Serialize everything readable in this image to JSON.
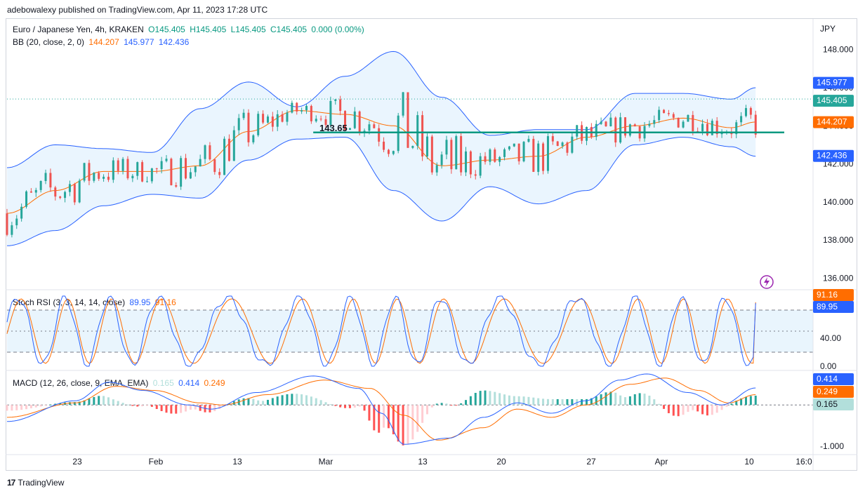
{
  "header": "adebowalexy published on TradingView.com, Apr 11, 2023 17:28 UTC",
  "price_legend": {
    "title": "Euro / Japanese Yen, 4h, KRAKEN",
    "o": "O145.405",
    "h": "H145.405",
    "l": "L145.405",
    "c": "C145.405",
    "chg": "0.000 (0.00%)"
  },
  "bb_legend": {
    "label": "BB (20, close, 2, 0)",
    "basis": "144.207",
    "upper": "145.977",
    "lower": "142.436"
  },
  "stoch_legend": {
    "label": "Stoch RSI (3, 3, 14, 14, close)",
    "k": "89.95",
    "d": "91.16"
  },
  "macd_legend": {
    "label": "MACD (12, 26, close, 9, EMA, EMA)",
    "hist": "0.165",
    "macd": "0.414",
    "signal": "0.249"
  },
  "currency": "JPY",
  "annotation": "143.65",
  "price_badges": {
    "upper": "145.977",
    "close": "145.405",
    "basis": "144.207",
    "lower": "142.436"
  },
  "stoch_badges": {
    "d": "91.16",
    "k": "89.95"
  },
  "macd_badges": {
    "macd": "0.414",
    "signal": "0.249",
    "hist": "0.165"
  },
  "footer": "TradingView",
  "colors": {
    "up": "#26a69a",
    "down": "#ef5350",
    "bb": "#2962ff",
    "basis": "#ff6d00",
    "fill": "#e3f2fd",
    "hline": "#089981"
  },
  "chart_data": [
    {
      "type": "candlestick",
      "title": "Euro / Japanese Yen, 4h, KRAKEN",
      "ylim": [
        135.5,
        149.5
      ],
      "yticks": [
        "148.000",
        "146.000",
        "144.000",
        "142.000",
        "140.000",
        "138.000",
        "136.000"
      ],
      "xticks": [
        "23",
        "Feb",
        "13",
        "Mar",
        "13",
        "20",
        "27",
        "Apr",
        "10",
        "16:0"
      ],
      "horizontal_line": 143.65,
      "anchors_upper": [
        [
          0,
          141.8
        ],
        [
          20,
          143.0
        ],
        [
          40,
          142.8
        ],
        [
          60,
          142.6
        ],
        [
          80,
          144.9
        ],
        [
          100,
          146.3
        ],
        [
          120,
          145.0
        ],
        [
          140,
          146.6
        ],
        [
          160,
          147.9
        ],
        [
          180,
          145.5
        ],
        [
          200,
          143.5
        ],
        [
          220,
          143.8
        ],
        [
          240,
          143.8
        ],
        [
          260,
          145.7
        ],
        [
          280,
          145.7
        ],
        [
          300,
          145.4
        ],
        [
          310,
          146.0
        ]
      ],
      "anchors_basis": [
        [
          0,
          139.4
        ],
        [
          20,
          140.6
        ],
        [
          40,
          141.6
        ],
        [
          60,
          141.6
        ],
        [
          80,
          141.9
        ],
        [
          100,
          143.7
        ],
        [
          120,
          144.8
        ],
        [
          140,
          144.6
        ],
        [
          160,
          144.0
        ],
        [
          180,
          141.9
        ],
        [
          200,
          142.2
        ],
        [
          220,
          142.4
        ],
        [
          240,
          143.4
        ],
        [
          260,
          144.0
        ],
        [
          280,
          144.4
        ],
        [
          300,
          143.9
        ],
        [
          310,
          144.2
        ]
      ],
      "anchors_lower": [
        [
          0,
          137.7
        ],
        [
          20,
          138.5
        ],
        [
          40,
          139.8
        ],
        [
          60,
          140.4
        ],
        [
          80,
          140.2
        ],
        [
          100,
          142.2
        ],
        [
          120,
          143.3
        ],
        [
          140,
          143.4
        ],
        [
          160,
          140.6
        ],
        [
          180,
          139.0
        ],
        [
          200,
          140.8
        ],
        [
          220,
          139.9
        ],
        [
          240,
          140.6
        ],
        [
          260,
          143.0
        ],
        [
          280,
          143.4
        ],
        [
          300,
          142.9
        ],
        [
          310,
          142.4
        ]
      ],
      "last_close": 145.405
    },
    {
      "type": "line",
      "title": "Stoch RSI (3, 3, 14, 14, close)",
      "ylim": [
        -3,
        107
      ],
      "yticks": [
        "0.00",
        "40.00",
        "80.00"
      ],
      "bands": [
        20,
        50,
        80
      ],
      "series": [
        {
          "name": "K",
          "color": "#2962ff"
        },
        {
          "name": "D",
          "color": "#ff6d00"
        }
      ],
      "k_last": 89.95,
      "d_last": 91.16
    },
    {
      "type": "line+bar",
      "title": "MACD (12, 26, close, 9, EMA, EMA)",
      "ylim": [
        -1.2,
        0.8
      ],
      "yticks": [
        "-1.000",
        "0.000"
      ],
      "anchors_macd": [
        [
          0,
          -0.4
        ],
        [
          30,
          0.1
        ],
        [
          45,
          0.55
        ],
        [
          60,
          0.35
        ],
        [
          80,
          0.0
        ],
        [
          90,
          -0.1
        ],
        [
          110,
          0.3
        ],
        [
          135,
          0.7
        ],
        [
          155,
          0.4
        ],
        [
          165,
          -0.2
        ],
        [
          175,
          -0.95
        ],
        [
          195,
          -0.8
        ],
        [
          210,
          -0.3
        ],
        [
          225,
          0.05
        ],
        [
          240,
          -0.2
        ],
        [
          255,
          0.1
        ],
        [
          270,
          0.6
        ],
        [
          282,
          0.75
        ],
        [
          300,
          0.3
        ],
        [
          315,
          0.0
        ],
        [
          330,
          0.41
        ]
      ],
      "anchors_signal": [
        [
          0,
          -0.3
        ],
        [
          30,
          0.05
        ],
        [
          48,
          0.45
        ],
        [
          65,
          0.35
        ],
        [
          85,
          0.05
        ],
        [
          95,
          0.0
        ],
        [
          115,
          0.25
        ],
        [
          140,
          0.6
        ],
        [
          160,
          0.4
        ],
        [
          175,
          -0.25
        ],
        [
          190,
          -0.85
        ],
        [
          210,
          -0.55
        ],
        [
          225,
          -0.1
        ],
        [
          240,
          -0.3
        ],
        [
          255,
          0.0
        ],
        [
          275,
          0.5
        ],
        [
          290,
          0.65
        ],
        [
          305,
          0.35
        ],
        [
          318,
          0.05
        ],
        [
          330,
          0.25
        ]
      ],
      "macd_last": 0.414,
      "signal_last": 0.249,
      "hist_last": 0.165
    }
  ]
}
